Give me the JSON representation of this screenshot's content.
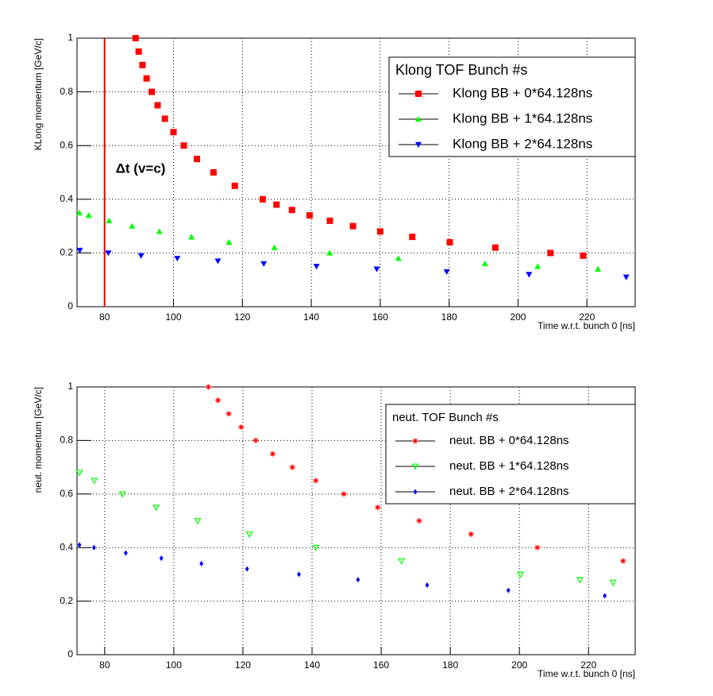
{
  "chart_data": [
    {
      "type": "scatter",
      "xlabel": "Time w.r.t. bunch 0 [ns]",
      "ylabel": "KLong momentum [GeV/c]",
      "xlim": [
        72,
        234
      ],
      "ylim": [
        0,
        1
      ],
      "xticks": [
        80,
        100,
        120,
        140,
        160,
        180,
        200,
        220
      ],
      "yticks": [
        0,
        0.2,
        0.4,
        0.6,
        0.8,
        1
      ],
      "grid": true,
      "legend_position": "upper right",
      "legend_title": "Klong TOF Bunch #s",
      "vline": {
        "x": 80,
        "color": "#e00000",
        "label": "Δt (v=c)"
      },
      "series": [
        {
          "name": "Klong BB + 0*64.128ns",
          "color": "#ff0000",
          "marker": "square",
          "x": [
            89.0,
            89.9,
            91.0,
            92.2,
            93.7,
            95.4,
            97.5,
            100.0,
            103.0,
            106.8,
            111.6,
            117.8,
            125.9,
            129.9,
            134.4,
            139.5,
            145.4,
            152.1,
            160.0,
            169.3,
            180.2,
            193.4,
            209.4,
            218.9
          ],
          "values": [
            1.0,
            0.95,
            0.9,
            0.85,
            0.8,
            0.75,
            0.7,
            0.65,
            0.6,
            0.55,
            0.5,
            0.45,
            0.4,
            0.38,
            0.36,
            0.34,
            0.32,
            0.3,
            0.28,
            0.26,
            0.24,
            0.22,
            0.2,
            0.19
          ]
        },
        {
          "name": "Klong BB + 1*64.128ns",
          "color": "#00ff00",
          "marker": "triangle-up",
          "x": [
            72.7,
            75.4,
            81.3,
            88.0,
            95.9,
            105.2,
            116.1,
            129.3,
            145.3,
            165.3,
            190.4,
            205.7,
            223.2
          ],
          "values": [
            0.35,
            0.34,
            0.32,
            0.3,
            0.28,
            0.26,
            0.24,
            0.22,
            0.2,
            0.18,
            0.16,
            0.15,
            0.14
          ]
        },
        {
          "name": "Klong BB + 2*64.128ns",
          "color": "#0000ff",
          "marker": "triangle-down",
          "x": [
            72.8,
            81.1,
            90.6,
            101.1,
            112.9,
            126.2,
            141.5,
            159.0,
            179.3,
            203.2,
            231.4
          ],
          "values": [
            0.21,
            0.2,
            0.19,
            0.18,
            0.17,
            0.16,
            0.15,
            0.14,
            0.13,
            0.12,
            0.11
          ]
        }
      ]
    },
    {
      "type": "scatter",
      "xlabel": "Time w.r.t. bunch 0 [ns]",
      "ylabel": "neut. momentum [GeV/c]",
      "xlim": [
        72,
        233.5
      ],
      "ylim": [
        0,
        1
      ],
      "xticks": [
        80,
        100,
        120,
        140,
        160,
        180,
        200,
        220
      ],
      "yticks": [
        0,
        0.2,
        0.4,
        0.6,
        0.8,
        1
      ],
      "grid": true,
      "legend_position": "upper right",
      "legend_title": "neut. TOF Bunch #s",
      "series": [
        {
          "name": "neut. BB + 0*64.128ns",
          "color": "#ff0000",
          "marker": "asterisk",
          "x": [
            110.0,
            112.8,
            115.9,
            119.5,
            123.7,
            128.6,
            134.3,
            141.1,
            149.2,
            159.0,
            171.0,
            186.0,
            205.2,
            230.0
          ],
          "values": [
            1.0,
            0.95,
            0.9,
            0.85,
            0.8,
            0.75,
            0.7,
            0.65,
            0.6,
            0.55,
            0.5,
            0.45,
            0.4,
            0.35
          ]
        },
        {
          "name": "neut. BB + 1*64.128ns",
          "color": "#00ff00",
          "marker": "open-triangle-down",
          "x": [
            72.7,
            77.0,
            85.1,
            94.9,
            106.9,
            121.9,
            141.1,
            165.9,
            200.3,
            217.5,
            227.1
          ],
          "values": [
            0.68,
            0.65,
            0.6,
            0.55,
            0.5,
            0.45,
            0.4,
            0.35,
            0.3,
            0.28,
            0.27
          ]
        },
        {
          "name": "neut. BB + 2*64.128ns",
          "color": "#0000ff",
          "marker": "diamond",
          "x": [
            72.7,
            76.9,
            86.1,
            96.4,
            108.0,
            121.2,
            136.2,
            153.3,
            173.3,
            196.8,
            224.7
          ],
          "values": [
            0.41,
            0.4,
            0.38,
            0.36,
            0.34,
            0.32,
            0.3,
            0.28,
            0.26,
            0.24,
            0.22
          ]
        }
      ]
    }
  ]
}
